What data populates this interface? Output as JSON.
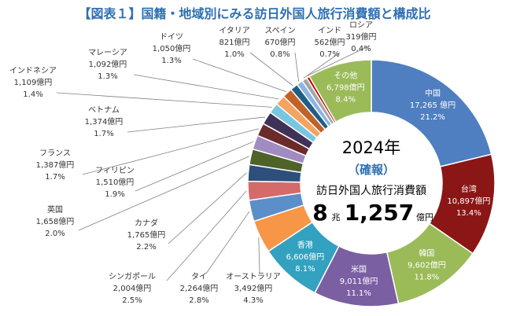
{
  "title": "【図表１】国籍・地域別にみる訪日外国人旅行消費額と構成比",
  "center": {
    "year": "2024年",
    "status": "（確報）",
    "caption": "訪日外国人旅行消費額",
    "total_cho": "8",
    "cho_unit": "兆",
    "total_oku": "1,257",
    "oku_unit": "億円"
  },
  "chart_data": {
    "type": "pie",
    "title": "【図表１】国籍・地域別にみる訪日外国人旅行消費額と構成比",
    "unit": "億円",
    "total": 81257,
    "slices": [
      {
        "name": "中国",
        "value": 17265,
        "value_label": "17,265 億円",
        "share": 21.2,
        "share_label": "21.2%",
        "color": "#4f7fc0"
      },
      {
        "name": "台湾",
        "value": 10897,
        "value_label": "10,897億円",
        "share": 13.4,
        "share_label": "13.4%",
        "color": "#8b1616"
      },
      {
        "name": "韓国",
        "value": 9602,
        "value_label": "9,602億円",
        "share": 11.8,
        "share_label": "11.8%",
        "color": "#9bbb59"
      },
      {
        "name": "米国",
        "value": 9011,
        "value_label": "9,011億円",
        "share": 11.1,
        "share_label": "11.1%",
        "color": "#7b5fa3"
      },
      {
        "name": "香港",
        "value": 6606,
        "value_label": "6,606億円",
        "share": 8.1,
        "share_label": "8.1%",
        "color": "#33a1c0"
      },
      {
        "name": "オーストラリア",
        "value": 3492,
        "value_label": "3,492億円",
        "share": 4.3,
        "share_label": "4.3%",
        "color": "#f79646"
      },
      {
        "name": "タイ",
        "value": 2264,
        "value_label": "2,264億円",
        "share": 2.8,
        "share_label": "2.8%",
        "color": "#5b8fc9"
      },
      {
        "name": "シンガポール",
        "value": 2004,
        "value_label": "2,004億円",
        "share": 2.5,
        "share_label": "2.5%",
        "color": "#d46a6a"
      },
      {
        "name": "カナダ",
        "value": 1765,
        "value_label": "1,765億円",
        "share": 2.2,
        "share_label": "2.2%",
        "color": "#2e4f7c"
      },
      {
        "name": "英国",
        "value": 1658,
        "value_label": "1,658億円",
        "share": 2.0,
        "share_label": "2.0%",
        "color": "#4f6228"
      },
      {
        "name": "フィリピン",
        "value": 1510,
        "value_label": "1,510億円",
        "share": 1.9,
        "share_label": "1.9%",
        "color": "#a18cc1"
      },
      {
        "name": "フランス",
        "value": 1387,
        "value_label": "1,387億円",
        "share": 1.7,
        "share_label": "1.7%",
        "color": "#6b2b2b"
      },
      {
        "name": "ベトナム",
        "value": 1374,
        "value_label": "1,374億円",
        "share": 1.7,
        "share_label": "1.7%",
        "color": "#3f3158"
      },
      {
        "name": "インドネシア",
        "value": 1109,
        "value_label": "1,109億円",
        "share": 1.4,
        "share_label": "1.4%",
        "color": "#79c6e0"
      },
      {
        "name": "マレーシア",
        "value": 1092,
        "value_label": "1,092億円",
        "share": 1.3,
        "share_label": "1.3%",
        "color": "#f4a460"
      },
      {
        "name": "ドイツ",
        "value": 1050,
        "value_label": "1,050億円",
        "share": 1.3,
        "share_label": "1.3%",
        "color": "#c0632b"
      },
      {
        "name": "イタリア",
        "value": 821,
        "value_label": "821億円",
        "share": 1.0,
        "share_label": "1.0%",
        "color": "#1f5f85"
      },
      {
        "name": "スペイン",
        "value": 670,
        "value_label": "670億円",
        "share": 0.8,
        "share_label": "0.8%",
        "color": "#8eb4e3"
      },
      {
        "name": "インド",
        "value": 562,
        "value_label": "562億円",
        "share": 0.7,
        "share_label": "0.7%",
        "color": "#a6a6a6"
      },
      {
        "name": "ロシア",
        "value": 319,
        "value_label": "319億円",
        "share": 0.4,
        "share_label": "0.4%",
        "color": "#c00000"
      },
      {
        "name": "その他",
        "value": 6798,
        "value_label": "6,798億円",
        "share": 8.4,
        "share_label": "8.4%",
        "color": "#9bbb59"
      }
    ]
  }
}
